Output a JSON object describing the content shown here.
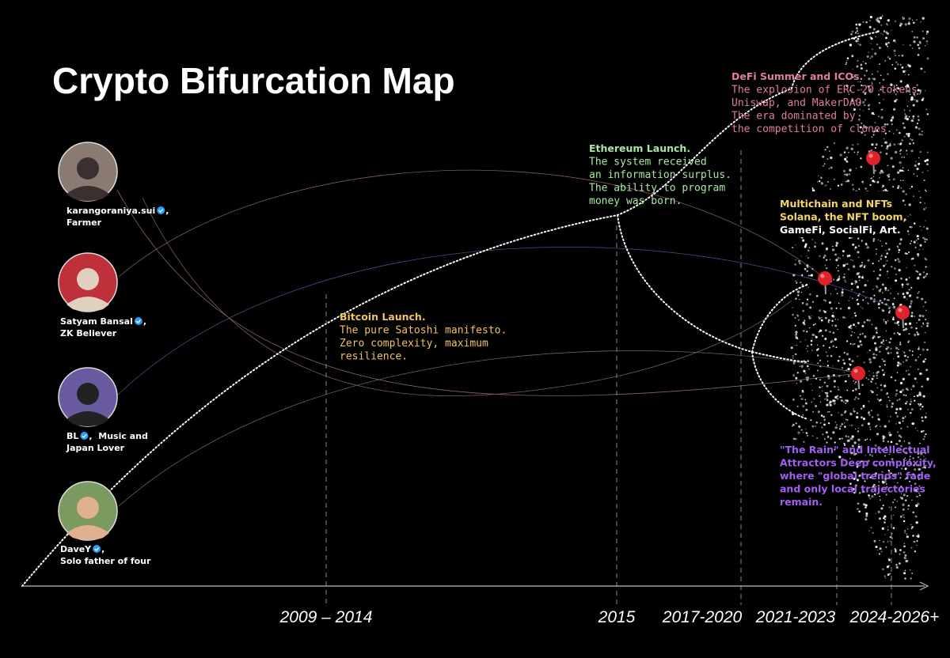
{
  "title": "Crypto Bifurcation Map",
  "timeline": [
    "2009 – 2014",
    "2015",
    "2017-2020",
    "2021-2023",
    "2024-2026+"
  ],
  "annotations": [
    {
      "heading": "Bitcoin Launch.",
      "lines": [
        "The pure Satoshi manifesto.",
        "Zero complexity, maximum",
        "resilience."
      ],
      "color": "#f2c45a"
    },
    {
      "heading": "Ethereum Launch.",
      "lines": [
        "The system received",
        "an information surplus.",
        "The ability to program",
        "money was born."
      ],
      "color": "#a9e8a4"
    },
    {
      "heading": "DeFi Summer and ICOs.",
      "lines": [
        "The explosion of ERC-20 tokens,",
        "Uniswap, and MakerDAO.",
        "The era dominated by",
        "the competition of clones."
      ],
      "color": "#e27d9b"
    },
    {
      "heading": "Multichain and NFTs",
      "lines": [
        "Solana, the NFT boom,",
        "GameFi, SocialFi, Art."
      ],
      "color": "#f6d56a"
    },
    {
      "lines": [
        "\"The Rain\" and Intellectual",
        "Attractors Deep complexity,",
        "where \"global trends\" fade",
        "and only local trajectories",
        "remain."
      ],
      "color": "#a35ff2"
    }
  ],
  "people": [
    {
      "name": "karangoraniya.sui",
      "after": ",",
      "role": "Farmer"
    },
    {
      "name": "Satyam Bansal",
      "after": ",",
      "role": "ZK Believer"
    },
    {
      "name": "BL",
      "after": ",  Music and",
      "role": "Japan Lover"
    },
    {
      "name": "DaveY",
      "after": ",",
      "role": "Solo father of four"
    }
  ]
}
